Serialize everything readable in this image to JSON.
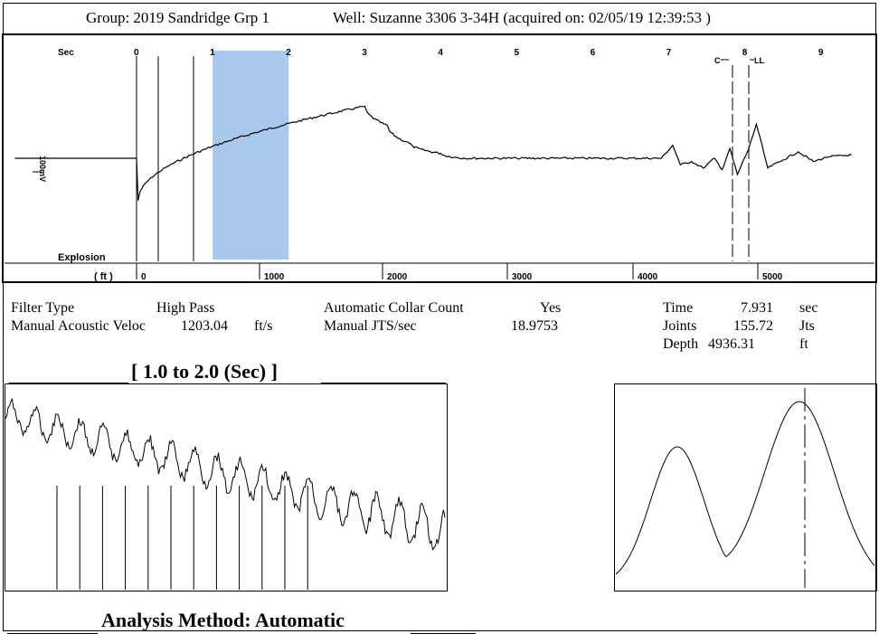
{
  "header": {
    "group_label": "Group:",
    "group_value": "2019 Sandridge Grp 1",
    "well_text": "Well: Suzanne 3306 3-34H (acquired on: 02/05/19 12:39:53 )"
  },
  "info": {
    "filter_type_label": "Filter Type",
    "filter_type_value": "High Pass",
    "manual_velocity_label": "Manual Acoustic Veloc",
    "manual_velocity_value": "1203.04",
    "manual_velocity_unit": "ft/s",
    "auto_collar_label": "Automatic Collar Count",
    "auto_collar_value": "Yes",
    "manual_jts_label": "Manual JTS/sec",
    "manual_jts_value": "18.9753",
    "time_label": "Time",
    "time_value": "7.931",
    "time_unit": "sec",
    "joints_label": "Joints",
    "joints_value": "155.72",
    "joints_unit": "Jts",
    "depth_label": "Depth",
    "depth_value": "4936.31",
    "depth_unit": "ft"
  },
  "zoom_title": "[ 1.0  to  2.0 (Sec) ]",
  "analysis_method": "Analysis Method:   Automatic",
  "chart_data": [
    {
      "type": "line",
      "top_axis_label": "Sec",
      "x_ticks_sec": [
        "0",
        "1",
        "2",
        "3",
        "4",
        "5",
        "6",
        "7",
        "8",
        "9"
      ],
      "bottom_axis_label": "( ft )",
      "bottom_ticks_ft": [
        "0",
        "1000",
        "2000",
        "3000",
        "4000",
        "5000"
      ],
      "y_label": "100mV",
      "explosion_label": "Explosion",
      "marker_c": "C",
      "marker_ll": "LL",
      "highlight_sec": [
        1.0,
        2.0
      ],
      "highlight_color": "#a8c8ee",
      "series": [
        {
          "x": [
            -1.6,
            0.0,
            0.02,
            3.0,
            3.3,
            3.6,
            4.0,
            4.3,
            5.0,
            6.0,
            6.9,
            7.05,
            7.15,
            7.3,
            7.45,
            7.6,
            7.7,
            7.8,
            7.9,
            8.05,
            8.15,
            8.3,
            8.5,
            8.7,
            8.9,
            9.1,
            9.4
          ],
          "y": [
            0,
            0,
            -1.3,
            1.6,
            1.0,
            0.45,
            0.15,
            0.0,
            0.0,
            0.0,
            0.0,
            0.4,
            -0.2,
            -0.1,
            -0.3,
            0.0,
            -0.35,
            0.3,
            -0.5,
            0.3,
            1.05,
            -0.3,
            -0.05,
            0.2,
            -0.1,
            0.05,
            0.1
          ]
        }
      ]
    },
    {
      "type": "line",
      "title": "[ 1.0  to  2.0 (Sec) ]",
      "x_range_sec": [
        1.0,
        2.0
      ],
      "collar_markers": 12
    },
    {
      "type": "line",
      "peaks": 2
    }
  ]
}
